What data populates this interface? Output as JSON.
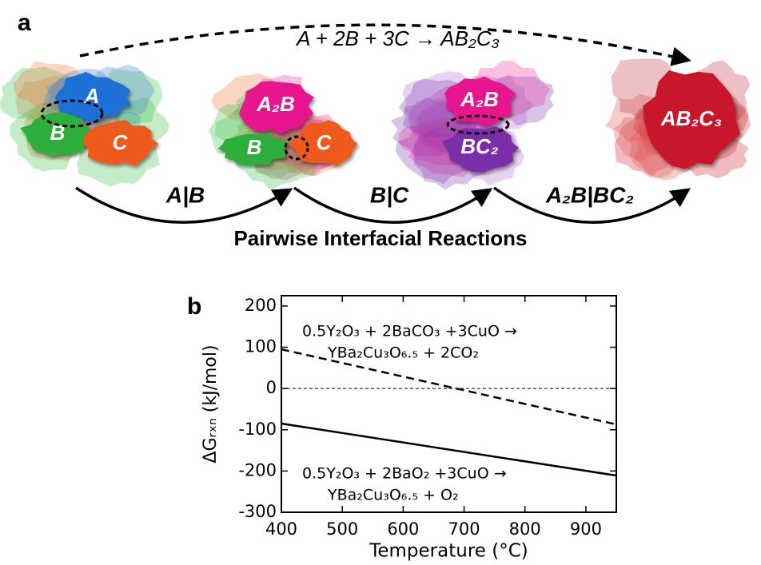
{
  "panel_a": {
    "label": "a",
    "equation": "A + 2B + 3C → AB₂C₃",
    "stages": [
      {
        "blobs": [
          "A",
          "B",
          "C"
        ]
      },
      {
        "blobs": [
          "A₂B",
          "B",
          "C"
        ]
      },
      {
        "blobs": [
          "A₂B",
          "BC₂"
        ]
      },
      {
        "blobs": [
          "AB₂C₃"
        ]
      }
    ],
    "reactions": [
      "A|B",
      "B|C",
      "A₂B|BC₂"
    ],
    "caption": "Pairwise Interfacial Reactions"
  },
  "chart_data": {
    "type": "line",
    "label": "b",
    "xlabel": "Temperature (°C)",
    "ylabel": "ΔGᵣₓₙ (kJ/mol)",
    "x": [
      400,
      950
    ],
    "series": [
      {
        "color": "#000000",
        "style": "dashed",
        "values": [
          95,
          -87
        ]
      },
      {
        "color": "#000000",
        "style": "solid",
        "values": [
          -85,
          -211
        ]
      }
    ],
    "annotations": [
      [
        "0.5Y₂O₃ + 2BaCO₃ +3CuO →",
        "YBa₂Cu₃O₆.₅ + 2CO₂"
      ],
      [
        "0.5Y₂O₃ + 2BaO₂ +3CuO →",
        "YBa₂Cu₃O₆.₅ + O₂"
      ]
    ],
    "hline": 0,
    "xlim": [
      400,
      950
    ],
    "ylim": [
      -300,
      225
    ],
    "xticks": [
      400,
      500,
      600,
      700,
      800,
      900
    ],
    "yticks": [
      -300,
      -200,
      -100,
      0,
      100,
      200
    ]
  }
}
